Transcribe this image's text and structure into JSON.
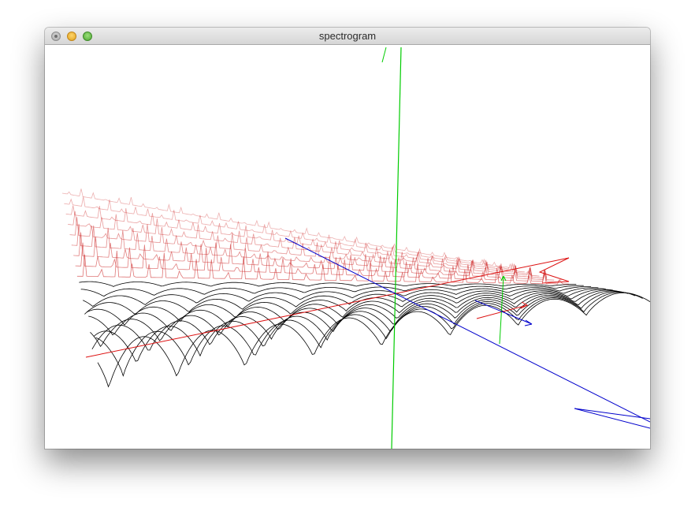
{
  "window": {
    "title": "spectrogram"
  },
  "scene": {
    "colors": {
      "background": "#ffffff",
      "trace": "#000000",
      "peak": "#cc2222",
      "axis_x": "#dd1111",
      "axis_y": "#00cc00",
      "axis_z": "#0000cc"
    }
  }
}
